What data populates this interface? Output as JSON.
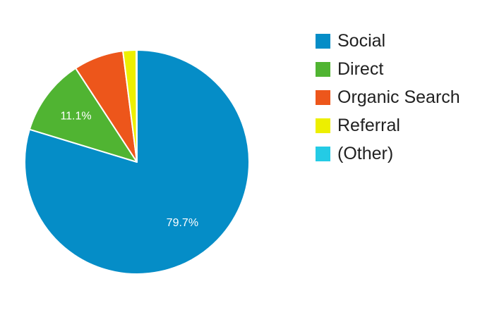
{
  "chart_data": {
    "type": "pie",
    "categories": [
      "Social",
      "Direct",
      "Organic Search",
      "Referral",
      "(Other)"
    ],
    "values": [
      79.7,
      11.1,
      7.2,
      1.9,
      0.1
    ],
    "colors": [
      "#058dc7",
      "#50b432",
      "#ed561b",
      "#edef00",
      "#24cbe5"
    ],
    "data_labels": [
      "79.7%",
      "11.1%",
      "",
      "",
      ""
    ],
    "legend_position": "right",
    "start_angle": "top",
    "direction": "clockwise"
  }
}
